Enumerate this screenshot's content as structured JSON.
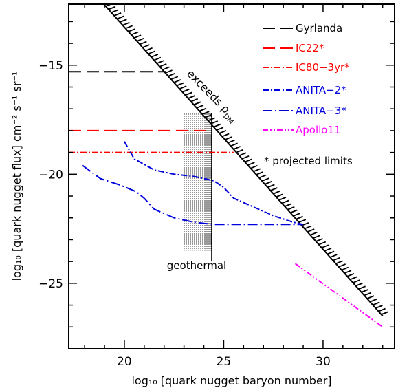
{
  "chart_data": {
    "type": "line",
    "xlabel": "log₁₀ [quark nugget baryon number]",
    "ylabel": "log₁₀ [quark nugget flux] cm⁻² s⁻¹ sr⁻¹",
    "xlim": [
      17.2,
      33.6
    ],
    "ylim": [
      -28.0,
      -12.2
    ],
    "xticks": [
      20,
      25,
      30
    ],
    "yticks": [
      -15,
      -20,
      -25
    ],
    "xtick_labels": [
      "20",
      "25",
      "30"
    ],
    "ytick_labels": [
      "−15",
      "−20",
      "−25"
    ],
    "grid": false,
    "legend_position": "top-right",
    "series": [
      {
        "name": "Gyrlanda",
        "color": "#000000",
        "style": "long-dash",
        "x": [
          17.2,
          22.1
        ],
        "y": [
          -15.3,
          -15.3
        ]
      },
      {
        "name": "IC22*",
        "color": "#ff0000",
        "style": "long-dash",
        "x": [
          17.2,
          24.4
        ],
        "y": [
          -18.0,
          -18.0
        ]
      },
      {
        "name": "IC80−3yr*",
        "color": "#ff0000",
        "style": "dash-dot",
        "x": [
          17.2,
          25.5
        ],
        "y": [
          -19.0,
          -19.0
        ]
      },
      {
        "name": "ANITA−2*",
        "color": "#0000dd",
        "style": "dash-dot",
        "x": [
          20.0,
          20.5,
          21.5,
          22.5,
          23.5,
          24.5,
          25.0,
          25.5,
          26.5,
          27.5,
          28.5,
          29.0
        ],
        "y": [
          -18.5,
          -19.3,
          -19.8,
          -20.0,
          -20.1,
          -20.3,
          -20.6,
          -21.1,
          -21.5,
          -21.9,
          -22.2,
          -22.3
        ]
      },
      {
        "name": "ANITA−3*",
        "color": "#0000dd",
        "style": "long-dash-dot",
        "x": [
          17.9,
          18.8,
          19.8,
          20.6,
          21.0,
          21.5,
          22.5,
          23.5,
          24.5,
          25.5,
          26.5,
          27.5,
          28.5,
          29.0
        ],
        "y": [
          -19.6,
          -20.2,
          -20.5,
          -20.8,
          -21.1,
          -21.6,
          -22.0,
          -22.2,
          -22.3,
          -22.3,
          -22.3,
          -22.3,
          -22.3,
          -22.3
        ]
      },
      {
        "name": "Apollo11",
        "color": "#ff00ff",
        "style": "dash-dot-dot",
        "x": [
          28.6,
          33.0
        ],
        "y": [
          -24.1,
          -27.0
        ]
      }
    ],
    "dm_boundary": {
      "label": "exceeds ρ",
      "label_subscript": "DM",
      "x": [
        17.2,
        33.0
      ],
      "y": [
        -10.4,
        -26.5
      ]
    },
    "geothermal_region": {
      "label": "geothermal",
      "x": [
        23.0,
        24.4
      ],
      "y_bottom": -23.5,
      "y_top": -17.2,
      "right_edge_line_bottom": -24.0
    },
    "annotation": {
      "text": "* projected limits"
    }
  }
}
